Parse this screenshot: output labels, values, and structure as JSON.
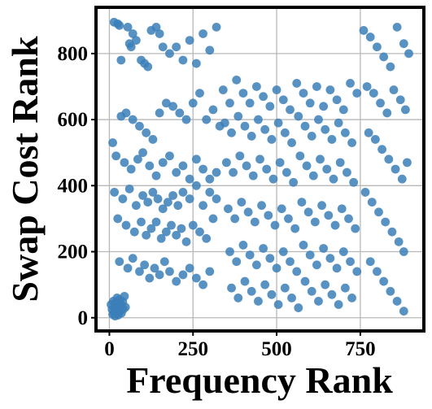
{
  "chart_data": {
    "type": "scatter",
    "title": "",
    "xlabel": "Frequency Rank",
    "ylabel": "Swap Cost Rank",
    "xlim": [
      -40,
      940
    ],
    "ylim": [
      -40,
      940
    ],
    "xticks": [
      0,
      250,
      500,
      750
    ],
    "yticks": [
      0,
      200,
      400,
      600,
      800
    ],
    "grid": true,
    "legend": "none",
    "marker_color": "#3b7fb8",
    "series": [
      {
        "x": [
          5,
          8,
          10,
          12,
          14,
          15,
          17,
          18,
          19,
          20,
          22,
          23,
          25,
          26,
          28,
          30,
          31,
          33,
          35,
          36,
          40,
          42,
          45,
          48,
          14,
          25,
          30,
          35,
          55,
          60,
          65,
          70,
          80,
          95,
          105,
          115,
          125,
          140,
          150,
          160,
          180,
          200,
          220,
          240,
          260,
          280,
          300,
          320,
          10,
          35,
          50,
          70,
          90,
          110,
          130,
          150,
          170,
          190,
          210,
          230,
          250,
          270,
          290,
          310,
          330,
          20,
          45,
          65,
          85,
          100,
          120,
          140,
          160,
          180,
          200,
          220,
          240,
          260,
          280,
          300,
          320,
          15,
          40,
          60,
          80,
          100,
          115,
          130,
          145,
          160,
          175,
          190,
          205,
          220,
          240,
          260,
          280,
          300,
          320,
          25,
          50,
          75,
          95,
          110,
          125,
          140,
          155,
          170,
          185,
          200,
          215,
          230,
          250,
          270,
          290,
          310,
          30,
          55,
          70,
          90,
          105,
          120,
          135,
          150,
          165,
          180,
          200,
          220,
          240,
          260,
          280,
          300,
          340,
          360,
          380,
          400,
          420,
          440,
          460,
          480,
          500,
          520,
          540,
          560,
          580,
          600,
          620,
          640,
          660,
          680,
          700,
          720,
          740,
          345,
          365,
          385,
          405,
          425,
          445,
          465,
          485,
          505,
          525,
          545,
          565,
          585,
          605,
          625,
          645,
          665,
          685,
          705,
          725,
          350,
          370,
          390,
          410,
          430,
          450,
          470,
          490,
          510,
          530,
          550,
          570,
          590,
          610,
          630,
          650,
          670,
          690,
          710,
          730,
          355,
          375,
          395,
          415,
          435,
          455,
          475,
          495,
          515,
          535,
          555,
          575,
          595,
          615,
          635,
          655,
          675,
          695,
          715,
          735,
          360,
          380,
          400,
          420,
          440,
          460,
          480,
          500,
          520,
          540,
          560,
          580,
          600,
          620,
          640,
          660,
          680,
          700,
          720,
          740,
          365,
          385,
          405,
          425,
          445,
          465,
          485,
          505,
          525,
          545,
          565,
          585,
          605,
          625,
          645,
          665,
          685,
          705,
          725,
          760,
          780,
          800,
          820,
          840,
          860,
          880,
          895,
          770,
          790,
          810,
          830,
          850,
          870,
          885,
          775,
          795,
          815,
          835,
          855,
          875,
          890,
          765,
          785,
          805,
          825,
          845,
          865,
          880,
          780,
          800,
          820,
          840,
          860,
          880
        ],
        "y": [
          40,
          25,
          10,
          50,
          15,
          30,
          5,
          45,
          20,
          35,
          12,
          60,
          28,
          8,
          42,
          18,
          55,
          22,
          38,
          14,
          48,
          26,
          65,
          32,
          895,
          890,
          885,
          780,
          880,
          830,
          820,
          860,
          840,
          780,
          770,
          760,
          870,
          880,
          860,
          820,
          800,
          820,
          780,
          840,
          770,
          860,
          810,
          880,
          530,
          610,
          620,
          600,
          580,
          560,
          540,
          620,
          650,
          640,
          620,
          600,
          650,
          680,
          600,
          630,
          580,
          490,
          470,
          450,
          480,
          500,
          460,
          430,
          470,
          490,
          440,
          460,
          420,
          480,
          450,
          420,
          440,
          380,
          360,
          390,
          340,
          370,
          350,
          380,
          360,
          330,
          350,
          370,
          340,
          380,
          360,
          400,
          340,
          380,
          360,
          300,
          280,
          260,
          290,
          250,
          270,
          290,
          240,
          260,
          280,
          250,
          270,
          230,
          280,
          260,
          240,
          300,
          170,
          150,
          180,
          140,
          160,
          120,
          150,
          130,
          170,
          140,
          110,
          130,
          150,
          120,
          100,
          140,
          690,
          650,
          720,
          680,
          650,
          700,
          670,
          640,
          690,
          660,
          630,
          710,
          680,
          650,
          700,
          640,
          690,
          660,
          630,
          710,
          680,
          590,
          560,
          610,
          580,
          550,
          600,
          570,
          540,
          590,
          560,
          530,
          610,
          580,
          550,
          600,
          570,
          540,
          590,
          560,
          530,
          470,
          440,
          490,
          460,
          430,
          480,
          450,
          420,
          470,
          440,
          410,
          490,
          460,
          430,
          480,
          450,
          420,
          470,
          440,
          410,
          330,
          300,
          350,
          320,
          290,
          340,
          310,
          280,
          330,
          300,
          270,
          350,
          320,
          290,
          340,
          310,
          280,
          330,
          300,
          270,
          200,
          170,
          220,
          190,
          160,
          210,
          180,
          150,
          200,
          170,
          140,
          220,
          190,
          160,
          210,
          180,
          150,
          200,
          170,
          140,
          90,
          60,
          110,
          80,
          50,
          100,
          70,
          40,
          90,
          60,
          30,
          110,
          80,
          50,
          100,
          70,
          40,
          90,
          60,
          870,
          850,
          820,
          790,
          760,
          880,
          830,
          800,
          700,
          680,
          650,
          620,
          690,
          660,
          630,
          560,
          540,
          510,
          480,
          450,
          420,
          470,
          380,
          350,
          320,
          290,
          260,
          230,
          200,
          170,
          140,
          110,
          80,
          50,
          20
        ]
      }
    ]
  }
}
